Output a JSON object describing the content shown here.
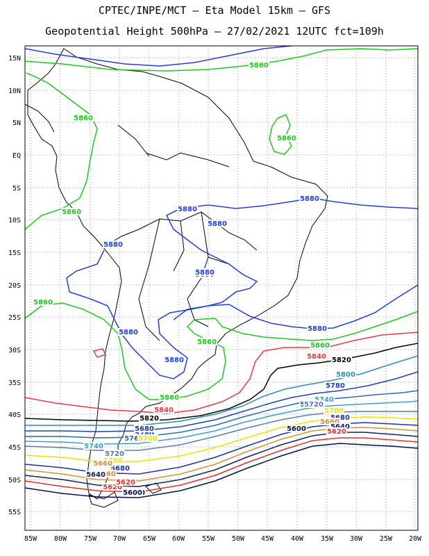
{
  "header": {
    "line1": "CPTEC/INPE/MCT –  Eta Model 15km – GFS",
    "line2": "Geopotential Height 500hPa – 27/02/2021 12UTC fct=109h"
  },
  "axes": {
    "lat_labels": [
      "15N",
      "10N",
      "5N",
      "EQ",
      "5S",
      "10S",
      "15S",
      "20S",
      "25S",
      "30S",
      "35S",
      "40S",
      "45S",
      "50S",
      "55S"
    ],
    "lon_labels": [
      "85W",
      "80W",
      "75W",
      "70W",
      "65W",
      "60W",
      "55W",
      "50W",
      "45W",
      "40W",
      "35W",
      "30W",
      "25W",
      "20W"
    ]
  },
  "colors": {
    "5880": "#1f3fe0",
    "5860": "#1ec81e",
    "5840": "#e83a3a",
    "5820": "#000000",
    "5800": "#2a8fb0",
    "5780": "#1a40c0",
    "5760": "#2a6aa8",
    "5740": "#3a9ed0",
    "5720": "#5a78b8",
    "5700": "#f0e000",
    "5680": "#2030a0",
    "5660": "#d89030",
    "5640": "#102060",
    "5620": "#e03030",
    "5600": "#001050",
    "coast": "#000000",
    "grid": "#999999"
  },
  "contour_labels": [
    {
      "text": "5860",
      "color": "5860"
    },
    {
      "text": "5860",
      "color": "5860"
    },
    {
      "text": "5860",
      "color": "5860"
    },
    {
      "text": "5860",
      "color": "5860"
    },
    {
      "text": "5860",
      "color": "5860"
    },
    {
      "text": "5860",
      "color": "5860"
    },
    {
      "text": "5860",
      "color": "5860"
    },
    {
      "text": "5860",
      "color": "5860"
    },
    {
      "text": "5880",
      "color": "5880"
    },
    {
      "text": "5880",
      "color": "5880"
    },
    {
      "text": "5880",
      "color": "5880"
    },
    {
      "text": "5880",
      "color": "5880"
    },
    {
      "text": "5880",
      "color": "5880"
    },
    {
      "text": "5880",
      "color": "5880"
    },
    {
      "text": "5880",
      "color": "5880"
    },
    {
      "text": "5880",
      "color": "5880"
    },
    {
      "text": "5880",
      "color": "5880"
    },
    {
      "text": "5840",
      "color": "5840"
    },
    {
      "text": "5840",
      "color": "5840"
    },
    {
      "text": "5820",
      "color": "5820"
    },
    {
      "text": "5820",
      "color": "5820"
    },
    {
      "text": "5800",
      "color": "5800"
    },
    {
      "text": "5780",
      "color": "5780"
    },
    {
      "text": "5760",
      "color": "5760"
    },
    {
      "text": "5740",
      "color": "5740"
    },
    {
      "text": "5720",
      "color": "5720"
    },
    {
      "text": "5700",
      "color": "5700"
    },
    {
      "text": "5680",
      "color": "5680"
    },
    {
      "text": "5660",
      "color": "5660"
    },
    {
      "text": "5640",
      "color": "5640"
    },
    {
      "text": "5620",
      "color": "5620"
    },
    {
      "text": "5600",
      "color": "5600"
    },
    {
      "text": "5800",
      "color": "5800"
    },
    {
      "text": "5780",
      "color": "5780"
    },
    {
      "text": "5760",
      "color": "5760"
    },
    {
      "text": "5740",
      "color": "5740"
    },
    {
      "text": "5720",
      "color": "5720"
    },
    {
      "text": "5700",
      "color": "5700"
    },
    {
      "text": "5680",
      "color": "5680"
    },
    {
      "text": "5660",
      "color": "5660"
    },
    {
      "text": "5640",
      "color": "5640"
    },
    {
      "text": "5620",
      "color": "5620"
    },
    {
      "text": "5600",
      "color": "5600"
    },
    {
      "text": "5700",
      "color": "5700"
    },
    {
      "text": "5680",
      "color": "5680"
    },
    {
      "text": "5660",
      "color": "5660"
    },
    {
      "text": "5640",
      "color": "5640"
    },
    {
      "text": "5620",
      "color": "5620"
    },
    {
      "text": "5600",
      "color": "5600"
    }
  ]
}
